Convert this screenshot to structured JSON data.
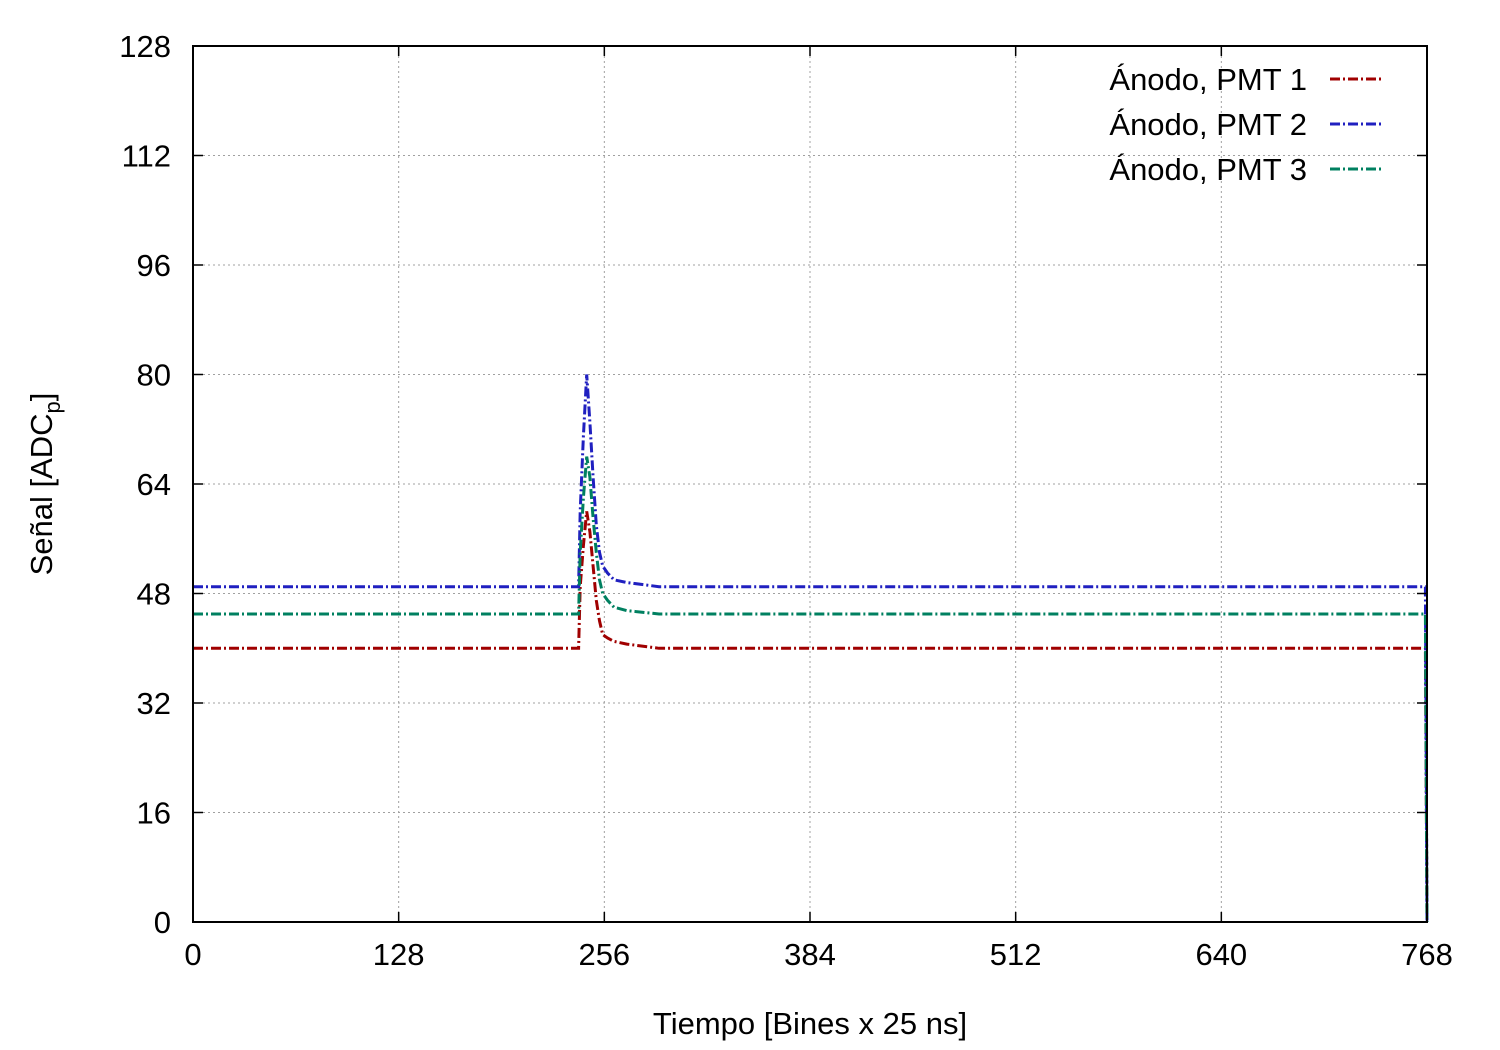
{
  "chart_data": {
    "type": "line",
    "title": "",
    "xlabel": "Tiempo [Bines x 25 ns]",
    "ylabel_main": "Señal [ADC",
    "ylabel_sub": "p",
    "ylabel_end": "]",
    "xlim": [
      0,
      768
    ],
    "ylim": [
      0,
      128
    ],
    "x_ticks": [
      0,
      128,
      256,
      384,
      512,
      640,
      768
    ],
    "y_ticks": [
      0,
      16,
      32,
      48,
      64,
      80,
      96,
      112,
      128
    ],
    "x_tick_labels": [
      "0",
      "128",
      "256",
      "384",
      "512",
      "640",
      "768"
    ],
    "y_tick_labels": [
      "0",
      "16",
      "32",
      "48",
      "64",
      "80",
      "96",
      "112",
      "128"
    ],
    "grid": true,
    "legend_position": "top-right",
    "series": [
      {
        "name": "Ánodo, PMT 1",
        "color": "#a00000",
        "points": [
          [
            0,
            40
          ],
          [
            100,
            40
          ],
          [
            200,
            40
          ],
          [
            240,
            40
          ],
          [
            241,
            49
          ],
          [
            243,
            55
          ],
          [
            245,
            60
          ],
          [
            247,
            57
          ],
          [
            249,
            52
          ],
          [
            251,
            47
          ],
          [
            253,
            44
          ],
          [
            255,
            42
          ],
          [
            258,
            41.5
          ],
          [
            262,
            41
          ],
          [
            270,
            40.6
          ],
          [
            290,
            40
          ],
          [
            300,
            40
          ],
          [
            400,
            40
          ],
          [
            500,
            40
          ],
          [
            600,
            40
          ],
          [
            640,
            40
          ],
          [
            767,
            40
          ],
          [
            768,
            0
          ]
        ]
      },
      {
        "name": "Ánodo, PMT 2",
        "color": "#2020c0",
        "points": [
          [
            0,
            49
          ],
          [
            100,
            49
          ],
          [
            200,
            49
          ],
          [
            240,
            49
          ],
          [
            241,
            60
          ],
          [
            243,
            71
          ],
          [
            245,
            80
          ],
          [
            247,
            73
          ],
          [
            249,
            65
          ],
          [
            251,
            58
          ],
          [
            253,
            54
          ],
          [
            255,
            52
          ],
          [
            258,
            51
          ],
          [
            262,
            50
          ],
          [
            270,
            49.6
          ],
          [
            290,
            49
          ],
          [
            300,
            49
          ],
          [
            400,
            49
          ],
          [
            500,
            49
          ],
          [
            600,
            49
          ],
          [
            640,
            49
          ],
          [
            767,
            49
          ],
          [
            768,
            0
          ]
        ]
      },
      {
        "name": "Ánodo, PMT 3",
        "color": "#008060",
        "points": [
          [
            0,
            45
          ],
          [
            100,
            45
          ],
          [
            200,
            45
          ],
          [
            240,
            45
          ],
          [
            241,
            54
          ],
          [
            243,
            62
          ],
          [
            245,
            68
          ],
          [
            247,
            65
          ],
          [
            249,
            59
          ],
          [
            251,
            54
          ],
          [
            253,
            50
          ],
          [
            255,
            48
          ],
          [
            258,
            47
          ],
          [
            262,
            46
          ],
          [
            270,
            45.5
          ],
          [
            290,
            45
          ],
          [
            300,
            45
          ],
          [
            400,
            45
          ],
          [
            500,
            45
          ],
          [
            600,
            45
          ],
          [
            640,
            45
          ],
          [
            767,
            45
          ],
          [
            768,
            0
          ]
        ]
      }
    ]
  }
}
